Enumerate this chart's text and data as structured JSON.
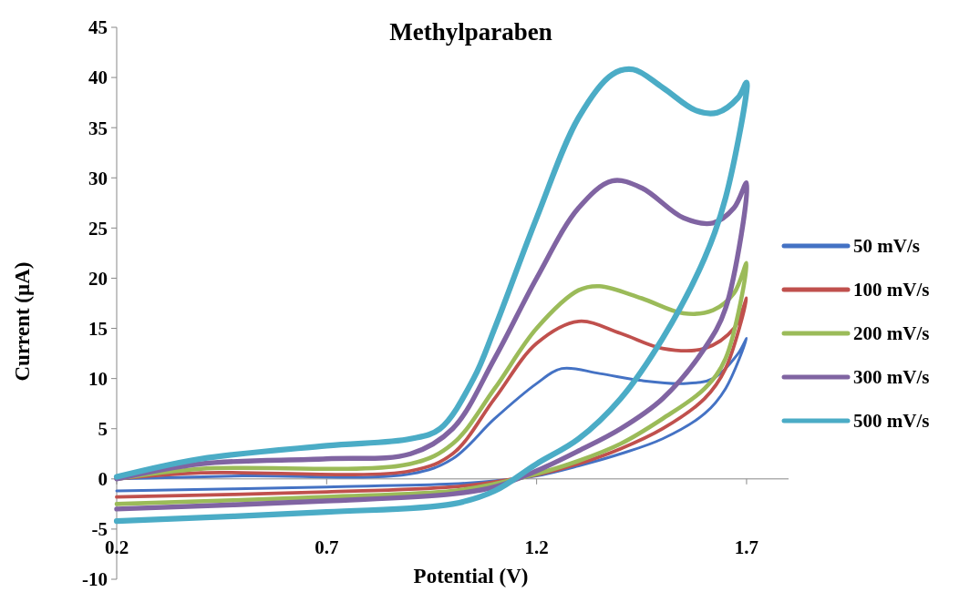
{
  "chart_data": {
    "type": "line",
    "title": "Methylparaben",
    "xlabel": "Potential (V)",
    "ylabel": "Current  (µA)",
    "xlim": [
      0.2,
      1.8
    ],
    "xticks": [
      0.2,
      0.7,
      1.2,
      1.7
    ],
    "ylim": [
      -10,
      45
    ],
    "yticks": [
      -10,
      -5,
      0,
      5,
      10,
      15,
      20,
      25,
      30,
      35,
      40,
      45
    ],
    "legend": "right",
    "marker": "none",
    "line_style": "solid",
    "series": [
      {
        "name": "50 mV/s",
        "color": "#4472c4",
        "x": [
          0.2,
          0.5,
          0.9,
          1.0,
          1.1,
          1.2,
          1.26,
          1.35,
          1.45,
          1.55,
          1.62,
          1.68,
          1.7,
          1.65,
          1.6,
          1.5,
          1.4,
          1.3,
          1.2,
          1.1,
          1.0,
          0.7,
          0.2
        ],
        "values": [
          0,
          0.3,
          0.5,
          2,
          6,
          9.5,
          11,
          10.5,
          9.8,
          9.5,
          10,
          12.5,
          14,
          9,
          6.5,
          4,
          2.5,
          1.3,
          0.3,
          -0.2,
          -0.5,
          -0.8,
          -1.2
        ]
      },
      {
        "name": "100 mV/s",
        "color": "#c0504d",
        "x": [
          0.2,
          0.4,
          0.9,
          1.0,
          1.1,
          1.2,
          1.3,
          1.4,
          1.5,
          1.6,
          1.67,
          1.7,
          1.65,
          1.6,
          1.5,
          1.4,
          1.3,
          1.2,
          1.1,
          1.0,
          0.7,
          0.2
        ],
        "values": [
          0,
          0.6,
          0.8,
          2.5,
          8,
          13.5,
          15.7,
          14.5,
          13,
          13,
          15,
          18,
          11,
          8,
          5,
          3,
          1.5,
          0.4,
          -0.3,
          -0.8,
          -1.3,
          -1.8
        ]
      },
      {
        "name": "200 mV/s",
        "color": "#9bbb59",
        "x": [
          0.2,
          0.4,
          0.9,
          1.0,
          1.1,
          1.2,
          1.3,
          1.35,
          1.45,
          1.55,
          1.62,
          1.67,
          1.7,
          1.65,
          1.6,
          1.5,
          1.4,
          1.3,
          1.2,
          1.1,
          1.0,
          0.7,
          0.2
        ],
        "values": [
          0,
          1,
          1.5,
          3.5,
          9,
          15,
          18.8,
          19.2,
          18,
          16.5,
          16.8,
          18.5,
          21.5,
          12,
          9,
          6,
          3.5,
          1.8,
          0.5,
          -0.5,
          -1.2,
          -1.8,
          -2.5
        ]
      },
      {
        "name": "300 mV/s",
        "color": "#8064a2",
        "x": [
          0.2,
          0.4,
          0.7,
          0.9,
          1.0,
          1.1,
          1.2,
          1.3,
          1.38,
          1.45,
          1.55,
          1.62,
          1.67,
          1.7,
          1.65,
          1.6,
          1.5,
          1.4,
          1.3,
          1.2,
          1.1,
          1.0,
          0.7,
          0.2
        ],
        "values": [
          0,
          1.5,
          2,
          2.5,
          5,
          12,
          20,
          27,
          29.7,
          29,
          26,
          25.5,
          27,
          29.5,
          17,
          13,
          8,
          5,
          2.8,
          0.8,
          -0.8,
          -1.5,
          -2.2,
          -3
        ]
      },
      {
        "name": "500 mV/s",
        "color": "#4bacc6",
        "x": [
          0.2,
          0.4,
          0.7,
          0.9,
          0.97,
          1.05,
          1.1,
          1.2,
          1.3,
          1.38,
          1.43,
          1.5,
          1.58,
          1.63,
          1.68,
          1.7,
          1.65,
          1.6,
          1.5,
          1.4,
          1.3,
          1.2,
          1.1,
          1.0,
          0.7,
          0.2
        ],
        "values": [
          0.2,
          2,
          3.3,
          4,
          5,
          10,
          15,
          26,
          36,
          40.3,
          40.8,
          39,
          36.7,
          36.5,
          38,
          39.5,
          28,
          22,
          14,
          8,
          4,
          1.5,
          -1.2,
          -2.5,
          -3.3,
          -4.2
        ]
      }
    ]
  }
}
